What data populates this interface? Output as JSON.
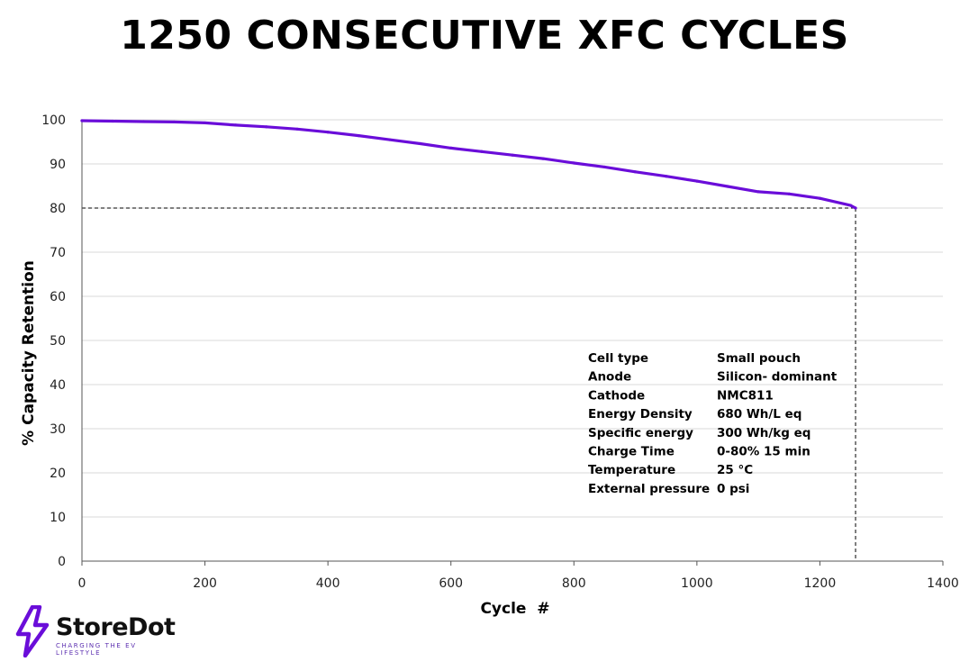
{
  "chart_data": {
    "type": "line",
    "title": "1250 CONSECUTIVE XFC CYCLES",
    "xlabel": "Cycle  #",
    "ylabel": "% Capacity Retention",
    "xlim": [
      0,
      1400
    ],
    "ylim": [
      0,
      100
    ],
    "x_ticks": [
      0,
      200,
      400,
      600,
      800,
      1000,
      1200,
      1400
    ],
    "y_ticks": [
      0,
      10,
      20,
      30,
      40,
      50,
      60,
      70,
      80,
      90,
      100
    ],
    "grid": "horizontal",
    "series": [
      {
        "color": "#6a0dd9",
        "x": [
          0,
          50,
          100,
          150,
          200,
          250,
          300,
          350,
          400,
          450,
          500,
          550,
          600,
          650,
          700,
          750,
          800,
          850,
          900,
          950,
          1000,
          1050,
          1100,
          1150,
          1200,
          1250,
          1258
        ],
        "y": [
          99.8,
          99.7,
          99.6,
          99.5,
          99.3,
          98.8,
          98.4,
          97.9,
          97.2,
          96.4,
          95.5,
          94.6,
          93.6,
          92.8,
          92.0,
          91.2,
          90.2,
          89.3,
          88.2,
          87.2,
          86.1,
          84.9,
          83.7,
          83.2,
          82.2,
          80.6,
          80.0
        ]
      }
    ],
    "reference_lines": [
      {
        "y": 80
      },
      {
        "x": 1258
      }
    ]
  },
  "specs": [
    {
      "label": "Cell type",
      "value": "Small pouch"
    },
    {
      "label": "Anode",
      "value": "Silicon- dominant"
    },
    {
      "label": "Cathode",
      "value": "NMC811"
    },
    {
      "label": "Energy Density",
      "value": "680 Wh/L eq"
    },
    {
      "label": "Specific energy",
      "value": "300 Wh/kg eq"
    },
    {
      "label": "Charge Time",
      "value": "0-80% 15 min"
    },
    {
      "label": "Temperature",
      "value": "25 °C"
    },
    {
      "label": "External pressure",
      "value": "0 psi"
    }
  ],
  "brand": {
    "name": "StoreDot",
    "tagline": "CHARGING THE EV LIFESTYLE",
    "logo_icon": "lightning-bolt-icon",
    "accent_color": "#6a0dd9"
  }
}
